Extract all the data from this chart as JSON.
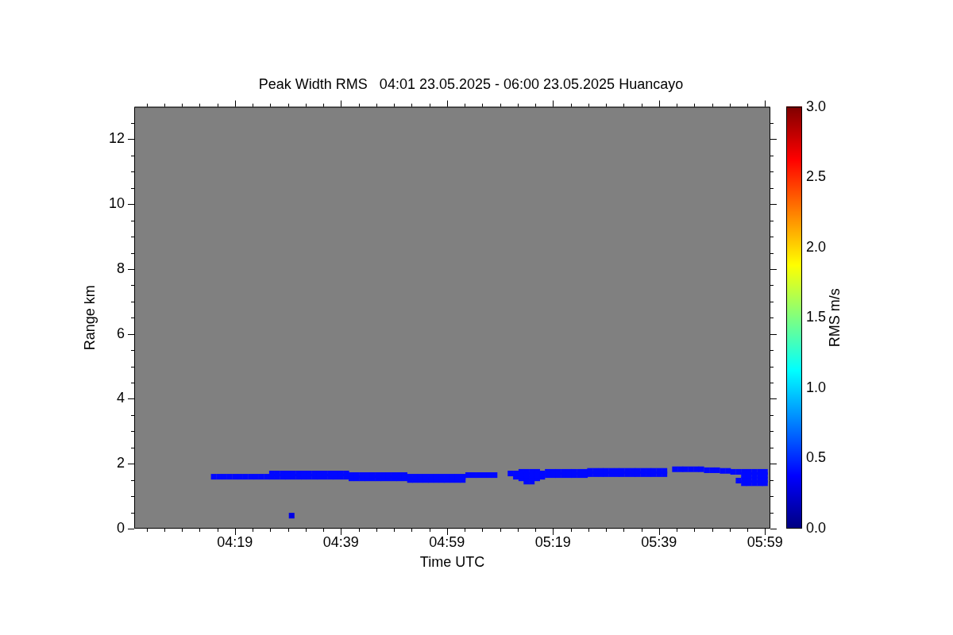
{
  "chart_data": {
    "type": "scatter",
    "title": "Peak Width RMS   04:01 23.05.2025 - 06:00 23.05.2025 Huancayo",
    "xlabel": "Time UTC",
    "ylabel": "Range km",
    "clabel": "RMS m/s",
    "marker": "square",
    "xlim": [
      4.0,
      6.0
    ],
    "ylim": [
      0,
      13
    ],
    "xticks": [
      {
        "value": 4.0389,
        "label": null
      },
      {
        "value": 4.0944,
        "label": null
      },
      {
        "value": 4.15,
        "label": null
      },
      {
        "value": 4.2056,
        "label": null
      },
      {
        "value": 4.2611,
        "label": null
      },
      {
        "value": 4.3167,
        "label": "04:19"
      },
      {
        "value": 4.3722,
        "label": null
      },
      {
        "value": 4.4278,
        "label": null
      },
      {
        "value": 4.4833,
        "label": null
      },
      {
        "value": 4.5389,
        "label": null
      },
      {
        "value": 4.5944,
        "label": null
      },
      {
        "value": 4.65,
        "label": "04:39"
      },
      {
        "value": 4.7056,
        "label": null
      },
      {
        "value": 4.7611,
        "label": null
      },
      {
        "value": 4.8167,
        "label": null
      },
      {
        "value": 4.8722,
        "label": null
      },
      {
        "value": 4.9278,
        "label": null
      },
      {
        "value": 4.9833,
        "label": "04:59"
      },
      {
        "value": 5.0389,
        "label": null
      },
      {
        "value": 5.0944,
        "label": null
      },
      {
        "value": 5.15,
        "label": null
      },
      {
        "value": 5.2056,
        "label": null
      },
      {
        "value": 5.2611,
        "label": null
      },
      {
        "value": 5.3167,
        "label": "05:19"
      },
      {
        "value": 5.3722,
        "label": null
      },
      {
        "value": 5.4278,
        "label": null
      },
      {
        "value": 5.4833,
        "label": null
      },
      {
        "value": 5.5389,
        "label": null
      },
      {
        "value": 5.5944,
        "label": null
      },
      {
        "value": 5.65,
        "label": "05:39"
      },
      {
        "value": 5.7056,
        "label": null
      },
      {
        "value": 5.7611,
        "label": null
      },
      {
        "value": 5.8167,
        "label": null
      },
      {
        "value": 5.8722,
        "label": null
      },
      {
        "value": 5.9278,
        "label": null
      },
      {
        "value": 5.9833,
        "label": "05:59"
      }
    ],
    "yticks": [
      0,
      {
        "value": 0.5,
        "label": null
      },
      {
        "value": 1,
        "label": null
      },
      {
        "value": 1.5,
        "label": null
      },
      2,
      {
        "value": 2.5,
        "label": null
      },
      {
        "value": 3,
        "label": null
      },
      {
        "value": 3.5,
        "label": null
      },
      4,
      {
        "value": 4.5,
        "label": null
      },
      {
        "value": 5,
        "label": null
      },
      {
        "value": 5.5,
        "label": null
      },
      6,
      {
        "value": 6.5,
        "label": null
      },
      {
        "value": 7,
        "label": null
      },
      {
        "value": 7.5,
        "label": null
      },
      8,
      {
        "value": 8.5,
        "label": null
      },
      {
        "value": 9,
        "label": null
      },
      {
        "value": 9.5,
        "label": null
      },
      10,
      {
        "value": 10.5,
        "label": null
      },
      {
        "value": 11,
        "label": null
      },
      {
        "value": 11.5,
        "label": null
      },
      12,
      {
        "value": 12.5,
        "label": null
      }
    ],
    "clim": [
      0,
      3
    ],
    "cticks": [
      {
        "value": 0,
        "label": "0.0"
      },
      0.5,
      {
        "value": 1,
        "label": "1.0"
      },
      1.5,
      {
        "value": 2,
        "label": "2.0"
      },
      2.5,
      {
        "value": 3,
        "label": "3.0"
      }
    ],
    "x": [
      4.25,
      4.267,
      4.283,
      4.3,
      4.317,
      4.333,
      4.35,
      4.367,
      4.383,
      4.4,
      4.417,
      4.433,
      4.433,
      4.45,
      4.45,
      4.467,
      4.467,
      4.483,
      4.483,
      4.5,
      4.5,
      4.517,
      4.517,
      4.533,
      4.533,
      4.55,
      4.55,
      4.567,
      4.567,
      4.583,
      4.583,
      4.6,
      4.6,
      4.617,
      4.617,
      4.633,
      4.633,
      4.65,
      4.65,
      4.667,
      4.667,
      4.683,
      4.683,
      4.7,
      4.7,
      4.717,
      4.717,
      4.733,
      4.733,
      4.75,
      4.75,
      4.767,
      4.767,
      4.783,
      4.783,
      4.8,
      4.8,
      4.817,
      4.817,
      4.833,
      4.833,
      4.85,
      4.85,
      4.867,
      4.867,
      4.883,
      4.883,
      4.9,
      4.9,
      4.917,
      4.917,
      4.933,
      4.933,
      4.95,
      4.95,
      4.967,
      4.967,
      4.983,
      4.983,
      5.0,
      5.0,
      5.017,
      5.017,
      5.033,
      5.033,
      5.05,
      5.067,
      5.083,
      5.1,
      5.117,
      5.133,
      5.183,
      5.2,
      5.2,
      5.217,
      5.217,
      5.217,
      5.233,
      5.233,
      5.233,
      5.233,
      5.25,
      5.25,
      5.25,
      5.25,
      5.267,
      5.267,
      5.267,
      5.283,
      5.283,
      5.3,
      5.3,
      5.317,
      5.317,
      5.333,
      5.333,
      5.35,
      5.35,
      5.367,
      5.367,
      5.383,
      5.383,
      5.4,
      5.4,
      5.417,
      5.417,
      5.433,
      5.433,
      5.45,
      5.45,
      5.467,
      5.467,
      5.483,
      5.483,
      5.5,
      5.5,
      5.517,
      5.517,
      5.533,
      5.533,
      5.55,
      5.55,
      5.567,
      5.567,
      5.583,
      5.583,
      5.6,
      5.6,
      5.617,
      5.617,
      5.633,
      5.633,
      5.65,
      5.65,
      5.667,
      5.667,
      5.7,
      5.717,
      5.733,
      5.75,
      5.767,
      5.783,
      5.8,
      5.817,
      5.833,
      5.85,
      5.867,
      5.883,
      5.9,
      5.9,
      5.917,
      5.917,
      5.917,
      5.917,
      5.933,
      5.933,
      5.933,
      5.933,
      5.95,
      5.95,
      5.95,
      5.95,
      5.967,
      5.967,
      5.967,
      5.967,
      5.983,
      5.983,
      5.983,
      5.983,
      4.495
    ],
    "values": [
      1.6,
      1.6,
      1.6,
      1.6,
      1.6,
      1.6,
      1.6,
      1.6,
      1.6,
      1.6,
      1.6,
      1.6,
      1.7,
      1.6,
      1.7,
      1.6,
      1.7,
      1.6,
      1.7,
      1.6,
      1.7,
      1.6,
      1.7,
      1.6,
      1.7,
      1.6,
      1.7,
      1.6,
      1.7,
      1.6,
      1.7,
      1.6,
      1.7,
      1.6,
      1.7,
      1.6,
      1.7,
      1.6,
      1.7,
      1.6,
      1.7,
      1.55,
      1.65,
      1.55,
      1.65,
      1.55,
      1.65,
      1.55,
      1.65,
      1.55,
      1.65,
      1.55,
      1.65,
      1.55,
      1.65,
      1.55,
      1.65,
      1.55,
      1.65,
      1.55,
      1.65,
      1.55,
      1.65,
      1.5,
      1.6,
      1.5,
      1.6,
      1.5,
      1.6,
      1.5,
      1.6,
      1.5,
      1.6,
      1.5,
      1.6,
      1.5,
      1.6,
      1.5,
      1.6,
      1.5,
      1.6,
      1.5,
      1.6,
      1.5,
      1.6,
      1.65,
      1.65,
      1.65,
      1.65,
      1.65,
      1.65,
      1.7,
      1.6,
      1.7,
      1.55,
      1.65,
      1.75,
      1.45,
      1.55,
      1.65,
      1.75,
      1.45,
      1.55,
      1.65,
      1.75,
      1.55,
      1.65,
      1.75,
      1.6,
      1.7,
      1.65,
      1.75,
      1.65,
      1.75,
      1.65,
      1.75,
      1.65,
      1.75,
      1.65,
      1.75,
      1.65,
      1.75,
      1.65,
      1.75,
      1.65,
      1.75,
      1.68,
      1.78,
      1.68,
      1.78,
      1.68,
      1.78,
      1.68,
      1.78,
      1.68,
      1.78,
      1.68,
      1.78,
      1.68,
      1.78,
      1.68,
      1.78,
      1.68,
      1.78,
      1.68,
      1.78,
      1.68,
      1.78,
      1.68,
      1.78,
      1.68,
      1.78,
      1.68,
      1.78,
      1.68,
      1.78,
      1.83,
      1.83,
      1.83,
      1.83,
      1.83,
      1.83,
      1.8,
      1.8,
      1.8,
      1.78,
      1.78,
      1.75,
      1.48,
      1.75,
      1.4,
      1.5,
      1.65,
      1.75,
      1.4,
      1.5,
      1.65,
      1.75,
      1.4,
      1.5,
      1.65,
      1.75,
      1.4,
      1.5,
      1.65,
      1.75,
      1.4,
      1.5,
      1.65,
      1.75,
      0.4
    ],
    "cvalues": [
      0.4,
      0.4,
      0.4,
      0.4,
      0.4,
      0.4,
      0.4,
      0.4,
      0.4,
      0.4,
      0.4,
      0.4,
      0.4,
      0.4,
      0.4,
      0.4,
      0.4,
      0.4,
      0.4,
      0.4,
      0.4,
      0.4,
      0.4,
      0.4,
      0.4,
      0.4,
      0.4,
      0.4,
      0.4,
      0.4,
      0.4,
      0.4,
      0.4,
      0.4,
      0.4,
      0.4,
      0.4,
      0.4,
      0.4,
      0.4,
      0.4,
      0.4,
      0.4,
      0.4,
      0.4,
      0.4,
      0.4,
      0.4,
      0.4,
      0.4,
      0.4,
      0.4,
      0.4,
      0.4,
      0.4,
      0.4,
      0.4,
      0.4,
      0.4,
      0.4,
      0.4,
      0.4,
      0.4,
      0.4,
      0.4,
      0.4,
      0.4,
      0.4,
      0.4,
      0.4,
      0.4,
      0.4,
      0.4,
      0.4,
      0.4,
      0.4,
      0.4,
      0.4,
      0.4,
      0.4,
      0.4,
      0.4,
      0.4,
      0.4,
      0.4,
      0.4,
      0.4,
      0.4,
      0.4,
      0.4,
      0.4,
      0.4,
      0.4,
      0.4,
      0.4,
      0.4,
      0.4,
      0.4,
      0.4,
      0.4,
      0.4,
      0.4,
      0.4,
      0.4,
      0.4,
      0.4,
      0.4,
      0.4,
      0.4,
      0.4,
      0.4,
      0.4,
      0.4,
      0.4,
      0.4,
      0.4,
      0.4,
      0.4,
      0.4,
      0.4,
      0.4,
      0.4,
      0.4,
      0.4,
      0.4,
      0.4,
      0.4,
      0.4,
      0.4,
      0.4,
      0.4,
      0.4,
      0.4,
      0.4,
      0.4,
      0.4,
      0.4,
      0.4,
      0.4,
      0.4,
      0.4,
      0.4,
      0.4,
      0.4,
      0.4,
      0.4,
      0.4,
      0.4,
      0.4,
      0.4,
      0.4,
      0.4,
      0.4,
      0.4,
      0.4,
      0.4,
      0.4,
      0.4,
      0.4,
      0.4,
      0.4,
      0.4,
      0.4,
      0.4,
      0.4,
      0.4,
      0.4,
      0.4,
      0.4,
      0.4,
      0.4,
      0.4,
      0.4,
      0.4,
      0.4,
      0.4,
      0.4,
      0.4,
      0.4,
      0.4,
      0.4,
      0.4,
      0.4,
      0.4,
      0.4,
      0.4,
      0.4,
      0.4,
      0.4,
      0.4,
      0.3
    ]
  }
}
